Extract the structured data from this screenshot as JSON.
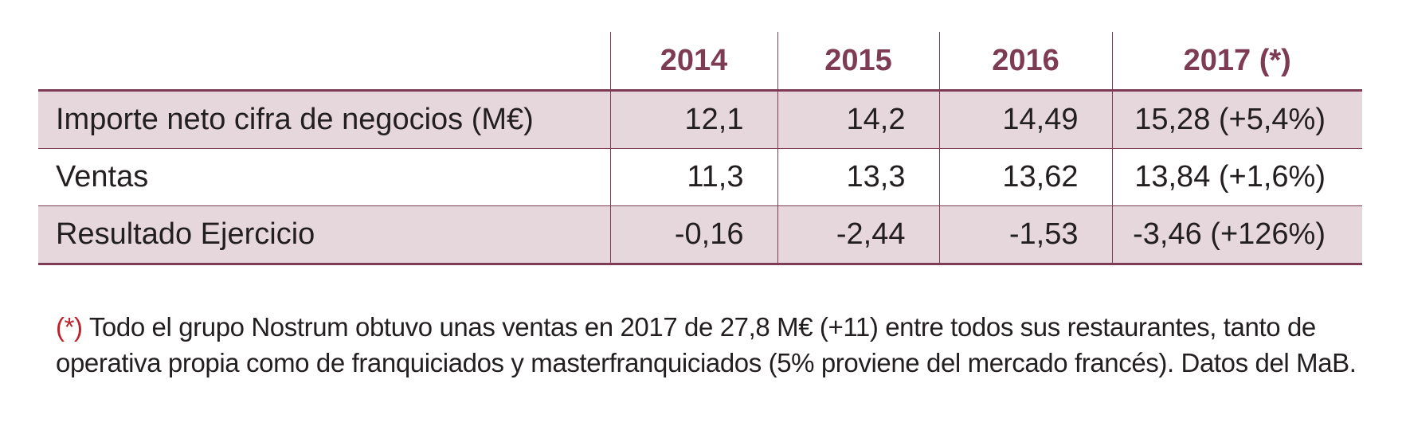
{
  "table": {
    "columns": [
      "",
      "2014",
      "2015",
      "2016",
      "2017 (*)"
    ],
    "rows": [
      {
        "label": "Importe neto cifra de negocios (M€)",
        "values": [
          "12,1",
          "14,2",
          "14,49",
          "15,28 (+5,4%)"
        ]
      },
      {
        "label": "Ventas",
        "values": [
          "11,3",
          "13,3",
          "13,62",
          "13,84 (+1,6%)"
        ]
      },
      {
        "label": "Resultado Ejercicio",
        "values": [
          "-0,16",
          "-2,44",
          "-1,53",
          "-3,46 (+126%)"
        ]
      }
    ]
  },
  "footnote": {
    "marker": "(*)",
    "text": "Todo el grupo Nostrum obtuvo unas ventas en 2017 de 27,8 M€ (+11) entre todos sus restaurantes, tanto de operativa propia como de franquiciados y masterfranquiciados (5% proviene del mercado francés). Datos del MaB."
  },
  "colors": {
    "accent": "#7d3b54",
    "row_shade": "#e6d7dd",
    "footnote_marker": "#c0212b"
  }
}
